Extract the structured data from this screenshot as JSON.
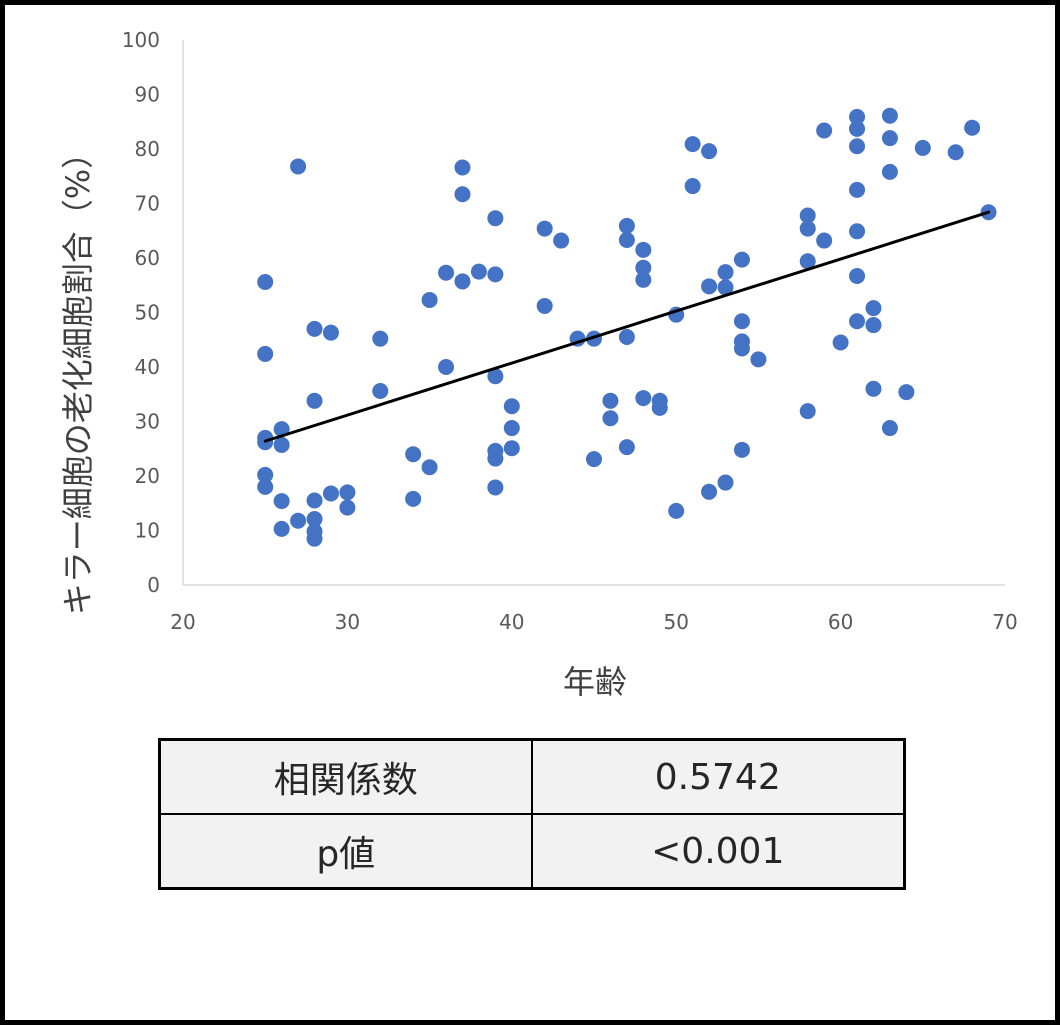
{
  "colors": {
    "point": "#4472c4",
    "trendline": "#000000",
    "axis_line": "#d9d9d9",
    "tick_text": "#595959",
    "table_cell": "#f2f2f2",
    "frame": "#000000"
  },
  "chart_data": {
    "type": "scatter",
    "xlabel": "年齢",
    "ylabel": "キラー細胞の老化細胞割合（%）",
    "xlim": [
      20,
      70
    ],
    "ylim": [
      0,
      100
    ],
    "x_ticks": [
      "20",
      "30",
      "40",
      "50",
      "60",
      "70"
    ],
    "y_ticks": [
      "0",
      "10",
      "20",
      "30",
      "40",
      "50",
      "60",
      "70",
      "80",
      "90",
      "100"
    ],
    "grid": false,
    "legend": "none",
    "series": [
      {
        "x": [
          25,
          25,
          25,
          25,
          25,
          25,
          26,
          26,
          26,
          26,
          27,
          27,
          28,
          28,
          28,
          28,
          28,
          28,
          29,
          29,
          30,
          30,
          32,
          32,
          34,
          34,
          35,
          35,
          36,
          36,
          37,
          37,
          37,
          38,
          39,
          39,
          39,
          39,
          39,
          39,
          40,
          40,
          40,
          42,
          42,
          43,
          44,
          45,
          45,
          46,
          46,
          47,
          47,
          47,
          47,
          48,
          48,
          48,
          48,
          49,
          49,
          50,
          50,
          51,
          51,
          52,
          52,
          52,
          53,
          53,
          53,
          54,
          54,
          54,
          54,
          54,
          55,
          58,
          58,
          58,
          58,
          59,
          59,
          60,
          61,
          61,
          61,
          61,
          61,
          61,
          61,
          62,
          62,
          62,
          63,
          63,
          63,
          63,
          64,
          65,
          67,
          68,
          69
        ],
        "y": [
          55.6,
          42.4,
          27.0,
          26.2,
          20.2,
          18.0,
          28.6,
          25.7,
          15.4,
          10.3,
          76.8,
          11.8,
          47.0,
          33.8,
          15.5,
          12.1,
          9.8,
          8.5,
          46.3,
          16.8,
          17.0,
          14.2,
          45.2,
          35.6,
          24.0,
          15.8,
          52.3,
          21.6,
          57.3,
          40.0,
          76.6,
          71.7,
          55.7,
          57.5,
          67.3,
          57.0,
          38.3,
          24.6,
          23.2,
          17.9,
          32.8,
          28.8,
          25.1,
          65.4,
          51.2,
          63.2,
          45.2,
          45.2,
          23.1,
          33.8,
          30.6,
          65.9,
          63.3,
          45.5,
          25.3,
          61.5,
          58.2,
          56.0,
          34.3,
          33.8,
          32.5,
          49.6,
          13.6,
          80.9,
          73.2,
          79.6,
          54.8,
          17.1,
          57.4,
          54.6,
          18.8,
          59.7,
          48.4,
          44.7,
          43.4,
          24.8,
          41.4,
          67.8,
          65.4,
          59.4,
          31.9,
          83.4,
          63.2,
          44.5,
          85.9,
          83.7,
          80.5,
          72.5,
          64.9,
          56.7,
          48.4,
          50.8,
          47.7,
          36.0,
          86.1,
          82.0,
          75.8,
          28.8,
          35.4,
          80.2,
          79.4,
          83.9,
          68.4
        ]
      }
    ],
    "trendline": {
      "type": "linear",
      "x": [
        25,
        69
      ],
      "y": [
        26.4,
        68.4
      ]
    }
  },
  "stats_table": {
    "rows": [
      {
        "label": "相関係数",
        "value": "0.5742"
      },
      {
        "label": "p値",
        "value": "<0.001"
      }
    ]
  }
}
